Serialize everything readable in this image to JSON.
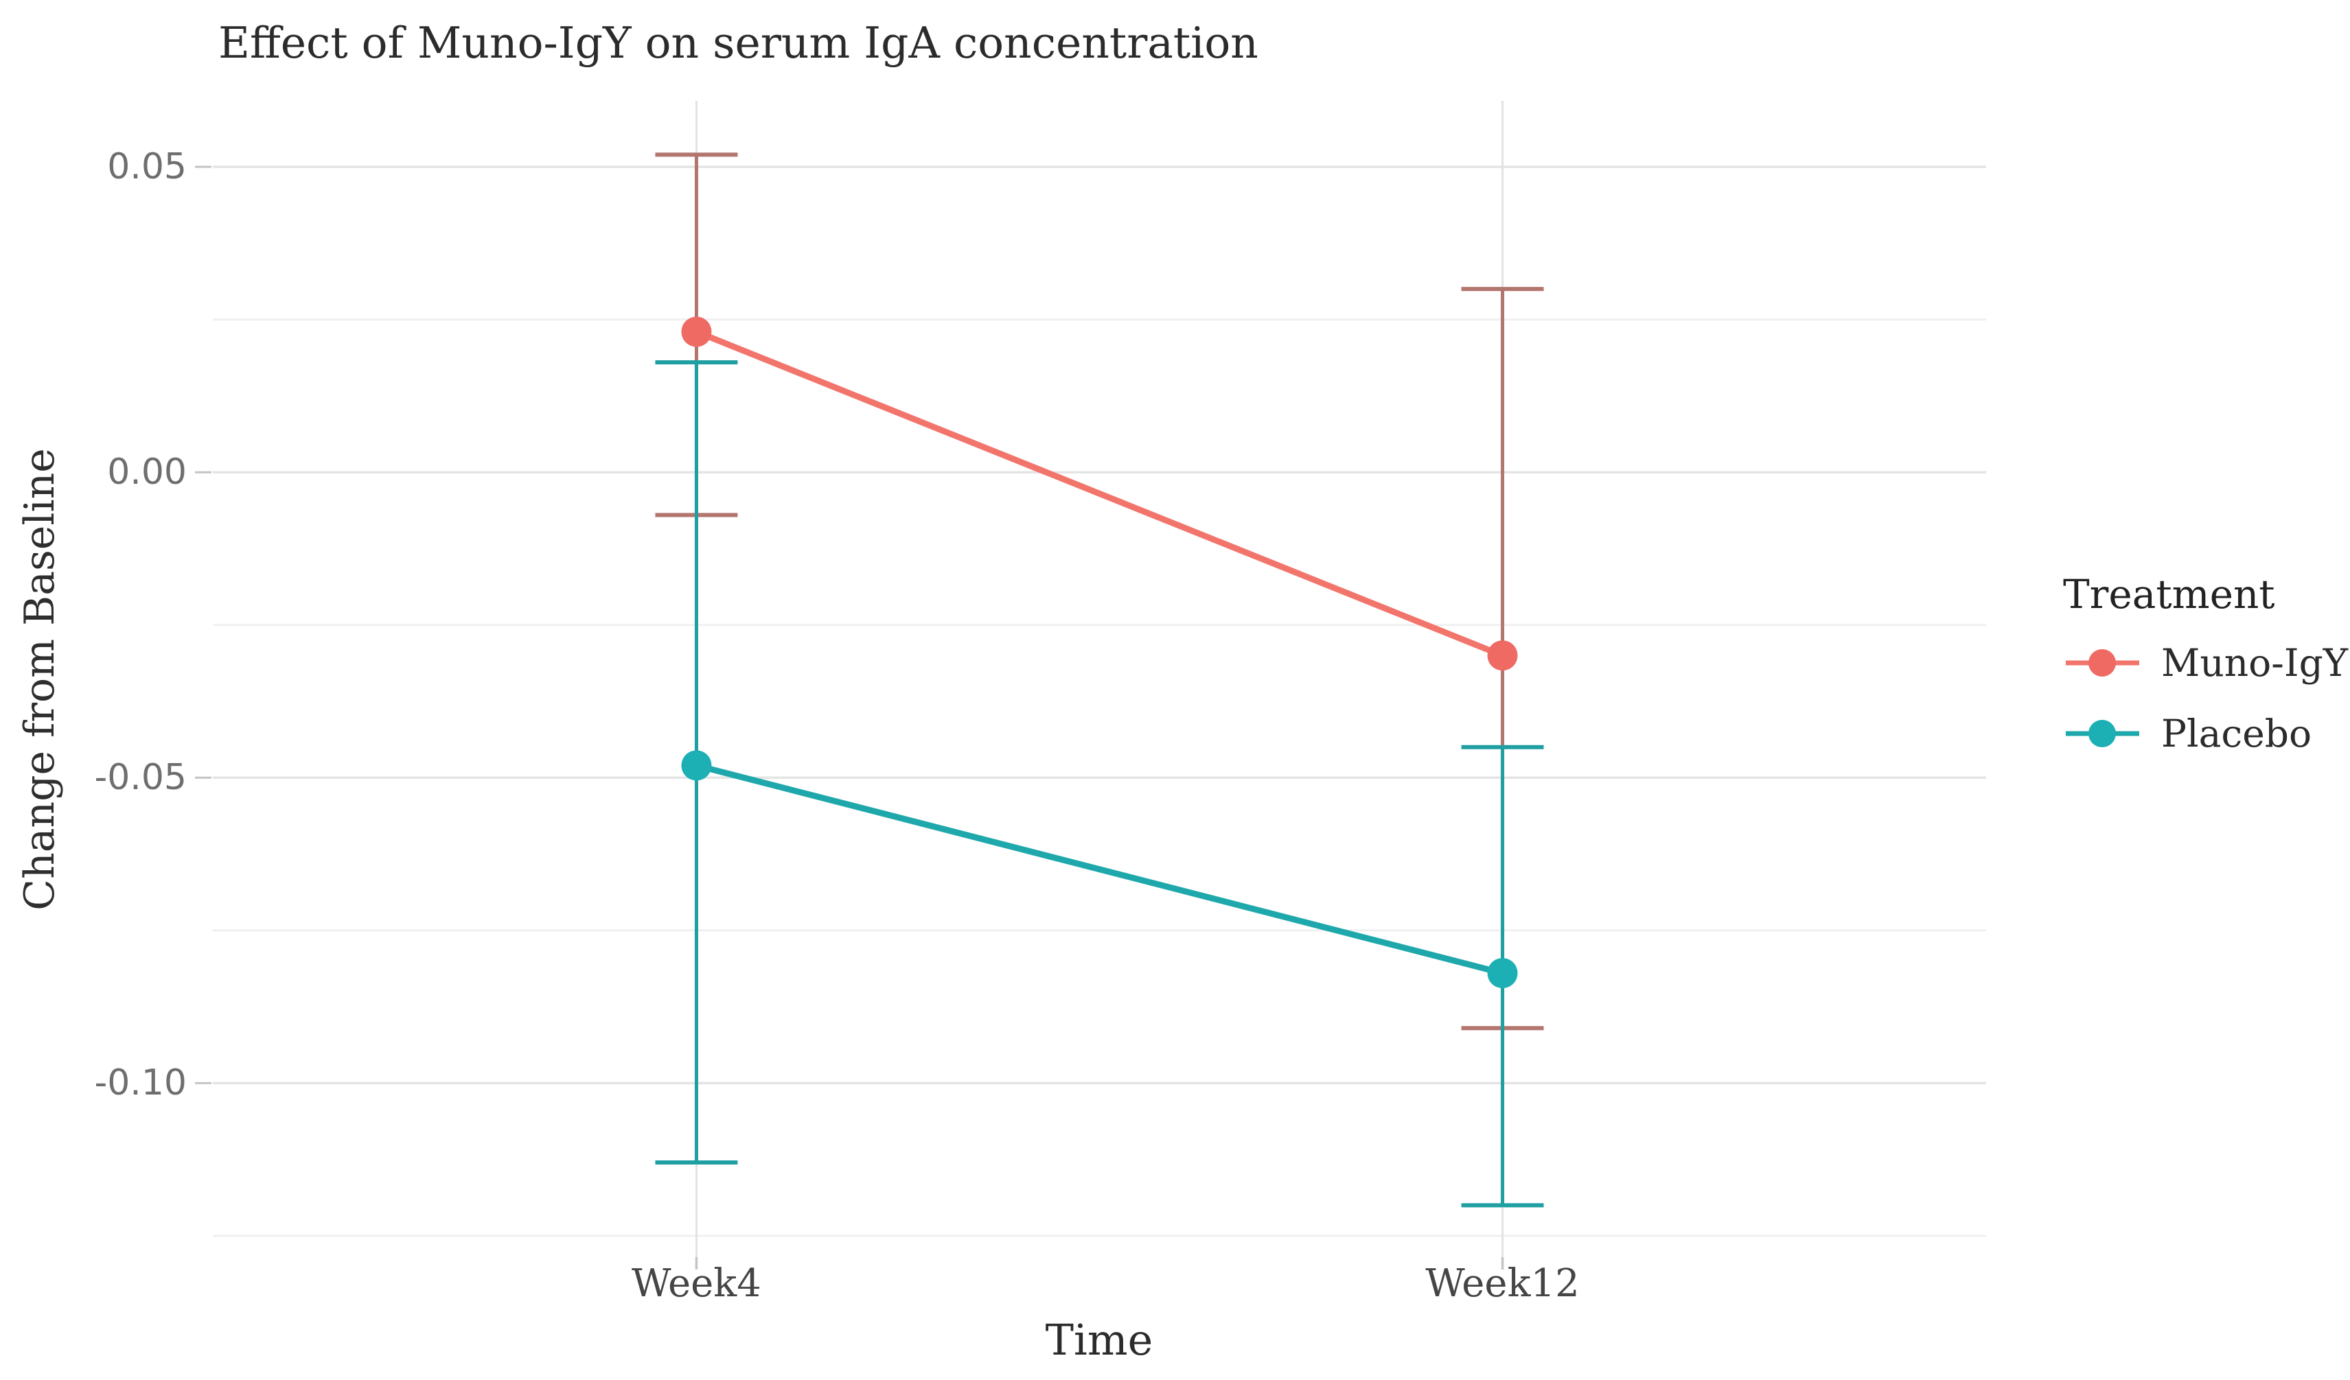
{
  "chart_data": {
    "type": "line",
    "title": "Effect of Muno-IgY on serum IgA concentration",
    "xlabel": "Time",
    "ylabel": "Change from Baseline",
    "categories": [
      "Week4",
      "Week12"
    ],
    "series": [
      {
        "name": "Muno-IgY",
        "color": "#F2756C",
        "point_color": "#EE6A62",
        "errorbar_color": "#B3766F",
        "values": [
          0.023,
          -0.03
        ],
        "ci_low": [
          -0.007,
          -0.091
        ],
        "ci_high": [
          0.052,
          0.03
        ]
      },
      {
        "name": "Placebo",
        "color": "#1FA8AC",
        "point_color": "#1CB0B4",
        "errorbar_color": "#1F9FA2",
        "values": [
          -0.048,
          -0.082
        ],
        "ci_low": [
          -0.113,
          -0.12
        ],
        "ci_high": [
          0.018,
          -0.045
        ]
      }
    ],
    "yaxis": {
      "ylim": [
        -0.1285,
        0.0608
      ],
      "ticks": [
        {
          "label": "0.05",
          "value": 0.05
        },
        {
          "label": "0.00",
          "value": 0.0
        },
        {
          "label": "-0.05",
          "value": -0.05
        },
        {
          "label": "-0.10",
          "value": -0.1
        }
      ],
      "minor": [
        0.025,
        -0.025,
        -0.075,
        -0.125
      ]
    },
    "legend": {
      "title": "Treatment",
      "position": "right"
    },
    "grid": "major+minor, horizontal + vertical at categories",
    "style": {
      "background": "#FFFFFF",
      "major_grid": "#E4E4E4",
      "minor_grid": "#F0F0F0",
      "category_grid": "#E2E2E2",
      "tick_mark": "#C4C4C4",
      "ytick_text": "#6E6E6E",
      "xtick_text": "#454545",
      "text": "#2B2B2B"
    }
  }
}
